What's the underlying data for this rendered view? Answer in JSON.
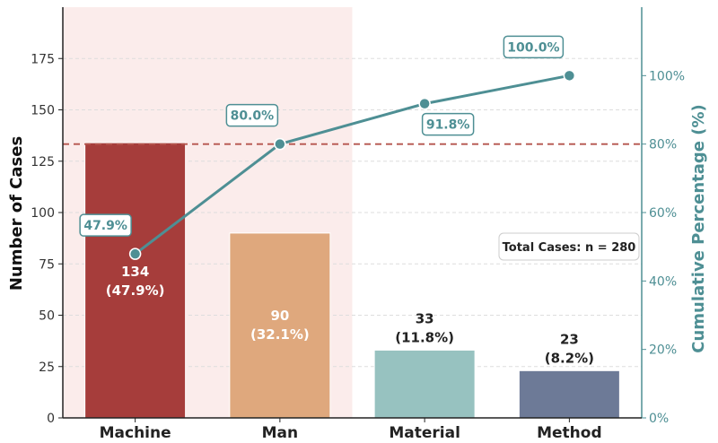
{
  "chart_data": {
    "type": "bar",
    "categories": [
      "Machine",
      "Man",
      "Material",
      "Method"
    ],
    "values": [
      134,
      90,
      33,
      23
    ],
    "bar_labels": [
      "134",
      "90",
      "33",
      "23"
    ],
    "bar_pct_labels": [
      "(47.9%)",
      "(32.1%)",
      "(11.8%)",
      "(8.2%)"
    ],
    "bar_colors": [
      "#a63d3b",
      "#dfa87d",
      "#97c2c0",
      "#6d7a97"
    ],
    "cumulative": [
      47.9,
      80.0,
      91.8,
      100.0
    ],
    "cumulative_labels": [
      "47.9%",
      "80.0%",
      "91.8%",
      "100.0%"
    ],
    "cumulative_color": "#4e8f94",
    "threshold": 80,
    "threshold_color": "#b5544d",
    "highlight_color": "#fbeceb",
    "xlabel": "",
    "ylabel": "Number of Cases",
    "y2label": "Cumulative Percentage (%)",
    "ylim": [
      0,
      200
    ],
    "y_ticks": [
      0,
      25,
      50,
      75,
      100,
      125,
      150,
      175
    ],
    "y2lim": [
      0,
      120
    ],
    "y2_ticks": [
      0,
      20,
      40,
      60,
      80,
      100
    ],
    "y2_tick_labels": [
      "0%",
      "20%",
      "40%",
      "60%",
      "80%",
      "100%"
    ],
    "grid": true,
    "annotation": "Total Cases: n = 280"
  }
}
